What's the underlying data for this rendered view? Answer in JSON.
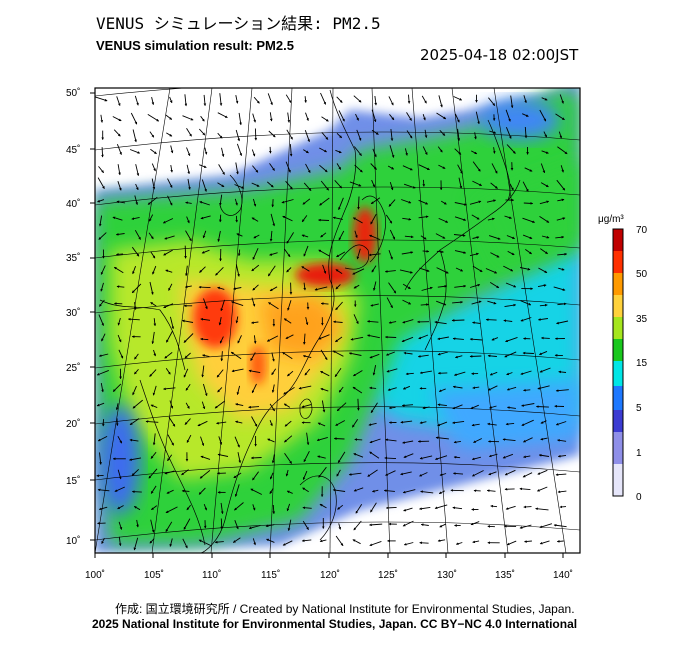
{
  "header": {
    "title_jp": "VENUS シミュレーション結果: PM2.5",
    "title_en": "VENUS simulation result: PM2.5",
    "timestamp": "2025-04-18 02:00JST"
  },
  "map": {
    "projection": "lambert-conformal",
    "lon_range": [
      100,
      142
    ],
    "lat_range": [
      9,
      51
    ],
    "lon_ticks": [
      "100˚",
      "105˚",
      "110˚",
      "115˚",
      "120˚",
      "125˚",
      "130˚",
      "135˚",
      "140˚"
    ],
    "lat_ticks": [
      "50˚",
      "45˚",
      "40˚",
      "35˚",
      "30˚",
      "25˚",
      "20˚",
      "15˚",
      "10˚"
    ],
    "layers": [
      "pm25-concentration-field",
      "wind-vectors",
      "coastlines",
      "graticule"
    ]
  },
  "colorbar": {
    "unit": "μg/m³",
    "labels": [
      "70",
      "50",
      "35",
      "15",
      "5",
      "1",
      "0"
    ],
    "colors": [
      "#c00000",
      "#ff3000",
      "#ff9a00",
      "#ffd23c",
      "#a5e61e",
      "#19c81e",
      "#00e6e6",
      "#1e78ff",
      "#3c3cd2",
      "#c8c8f5",
      "#ffffff"
    ]
  },
  "footer": {
    "credit_line1": "作成: 国立環境研究所 / Created by National Institute for Environmental Studies, Japan.",
    "credit_line2": "2025 National Institute for Environmental Studies, Japan. CC BY−NC 4.0 International"
  }
}
